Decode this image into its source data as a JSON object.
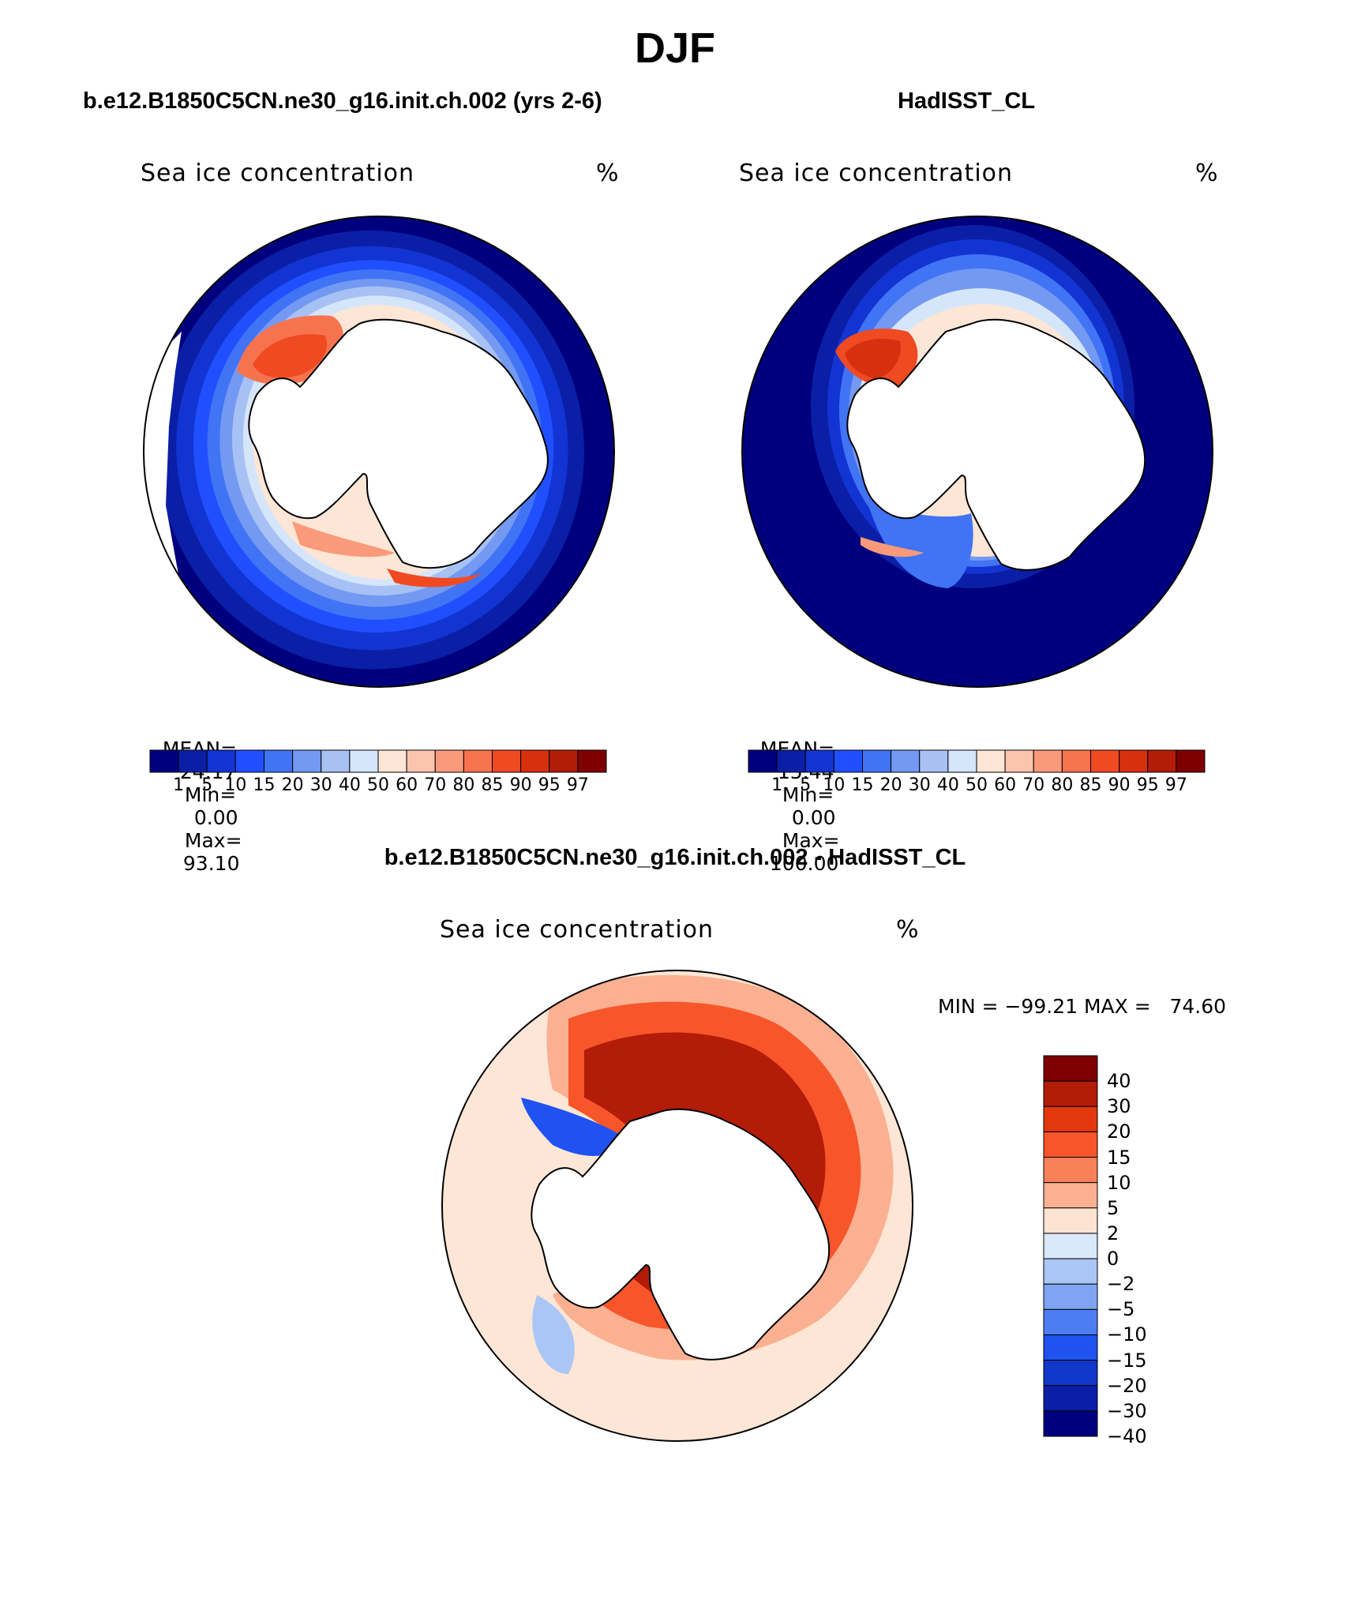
{
  "figure": {
    "title": "DJF"
  },
  "panels": [
    {
      "case_title": "b.e12.B1850C5CN.ne30_g16.init.ch.002 (yrs 2-6)",
      "field_name": "Sea ice concentration",
      "units": "%",
      "stats": {
        "mean_label": "MEAN=",
        "mean": "24.17",
        "min_label": "Min=",
        "min": "0.00",
        "max_label": "Max=",
        "max": "93.10"
      }
    },
    {
      "case_title": "HadISST_CL",
      "field_name": "Sea ice concentration",
      "units": "%",
      "stats": {
        "mean_label": "MEAN=",
        "mean": "15.44",
        "min_label": "Min=",
        "min": "0.00",
        "max_label": "Max=",
        "max": "100.00"
      }
    }
  ],
  "diff_panel": {
    "case_title": "b.e12.B1850C5CN.ne30_g16.init.ch.002 - HadISST_CL",
    "field_name": "Sea ice concentration",
    "units": "%",
    "stats_text": "MIN = −99.21 MAX =   74.60"
  },
  "colorbar_abs": {
    "levels": [
      "1",
      "5",
      "10",
      "15",
      "20",
      "30",
      "40",
      "50",
      "60",
      "70",
      "80",
      "85",
      "90",
      "95",
      "97"
    ],
    "colors": [
      "#00007f",
      "#0a1fa6",
      "#1234d2",
      "#1f4fff",
      "#4173f5",
      "#7499f2",
      "#a7c1f5",
      "#d5e5fa",
      "#fde6d6",
      "#fcc4ac",
      "#fa9a7a",
      "#f7734f",
      "#f04a22",
      "#d7300f",
      "#b31c09",
      "#7f0000"
    ]
  },
  "colorbar_diff": {
    "levels": [
      "40",
      "30",
      "20",
      "15",
      "10",
      "5",
      "2",
      "0",
      "−2",
      "−5",
      "−10",
      "−15",
      "−20",
      "−30",
      "−40"
    ],
    "colors": [
      "#7f0000",
      "#b31c09",
      "#e4380c",
      "#f7562a",
      "#f98058",
      "#fbb092",
      "#fde3d1",
      "#d9e8fa",
      "#aac6f7",
      "#7ea4f3",
      "#4c7df3",
      "#1f52f0",
      "#0f37c9",
      "#0a1fa6",
      "#00007f"
    ]
  },
  "map_colors": {
    "ocean_open": "#00007f",
    "land": "#ffffff",
    "diff_background": "#fde6d6"
  }
}
